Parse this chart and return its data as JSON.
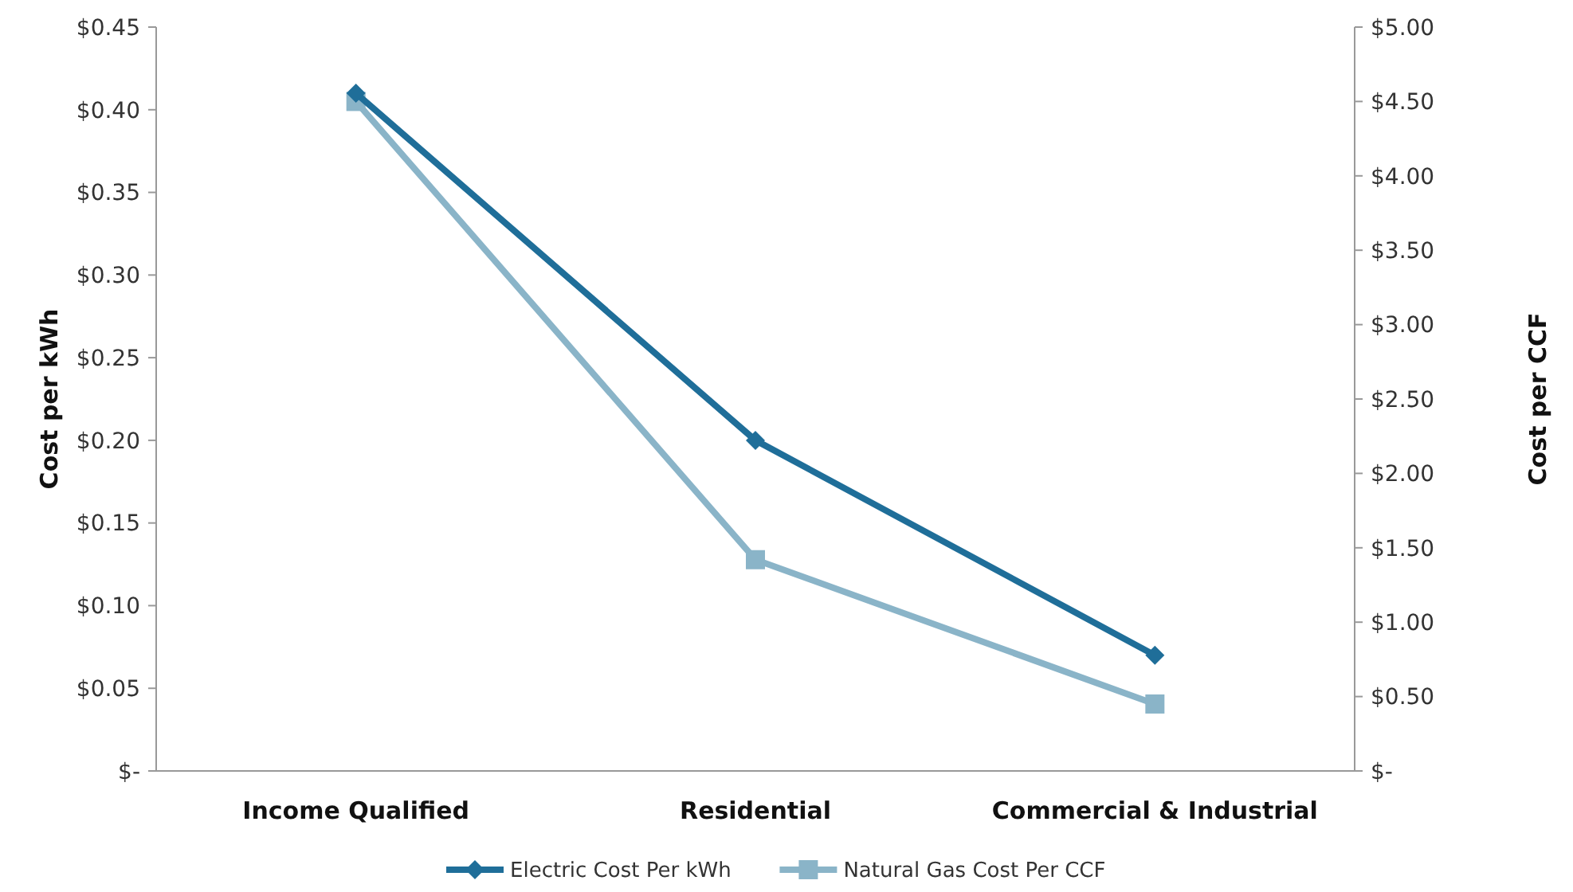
{
  "chart_data": {
    "type": "line",
    "categories": [
      "Income Qualified",
      "Residential",
      "Commercial & Industrial"
    ],
    "ylabel": "Cost per kWh",
    "y2label": "Cost per CCF",
    "ylim": [
      0,
      0.45
    ],
    "yticks": [
      {
        "value": 0,
        "label": "$-"
      },
      {
        "value": 0.05,
        "label": "$0.05"
      },
      {
        "value": 0.1,
        "label": "$0.10"
      },
      {
        "value": 0.15,
        "label": "$0.15"
      },
      {
        "value": 0.2,
        "label": "$0.20"
      },
      {
        "value": 0.25,
        "label": "$0.25"
      },
      {
        "value": 0.3,
        "label": "$0.30"
      },
      {
        "value": 0.35,
        "label": "$0.35"
      },
      {
        "value": 0.4,
        "label": "$0.40"
      },
      {
        "value": 0.45,
        "label": "$0.45"
      }
    ],
    "y2lim": [
      0,
      5
    ],
    "y2ticks": [
      {
        "value": 0,
        "label": "$-"
      },
      {
        "value": 0.5,
        "label": "$0.50"
      },
      {
        "value": 1,
        "label": "$1.00"
      },
      {
        "value": 1.5,
        "label": "$1.50"
      },
      {
        "value": 2,
        "label": "$2.00"
      },
      {
        "value": 2.5,
        "label": "$2.50"
      },
      {
        "value": 3,
        "label": "$3.00"
      },
      {
        "value": 3.5,
        "label": "$3.50"
      },
      {
        "value": 4,
        "label": "$4.00"
      },
      {
        "value": 4.5,
        "label": "$4.50"
      },
      {
        "value": 5,
        "label": "$5.00"
      }
    ],
    "grid": false,
    "legend": "bottom",
    "series": [
      {
        "name": "Electric Cost Per kWh",
        "color": "#1f6e99",
        "marker": "diamond",
        "values": [
          0.41,
          0.2,
          0.07
        ]
      },
      {
        "name": "Natural Gas Cost Per CCF",
        "color": "#8ab4c8",
        "marker": "square",
        "axis": "y2",
        "values": [
          4.5,
          1.42,
          0.45
        ]
      }
    ]
  }
}
